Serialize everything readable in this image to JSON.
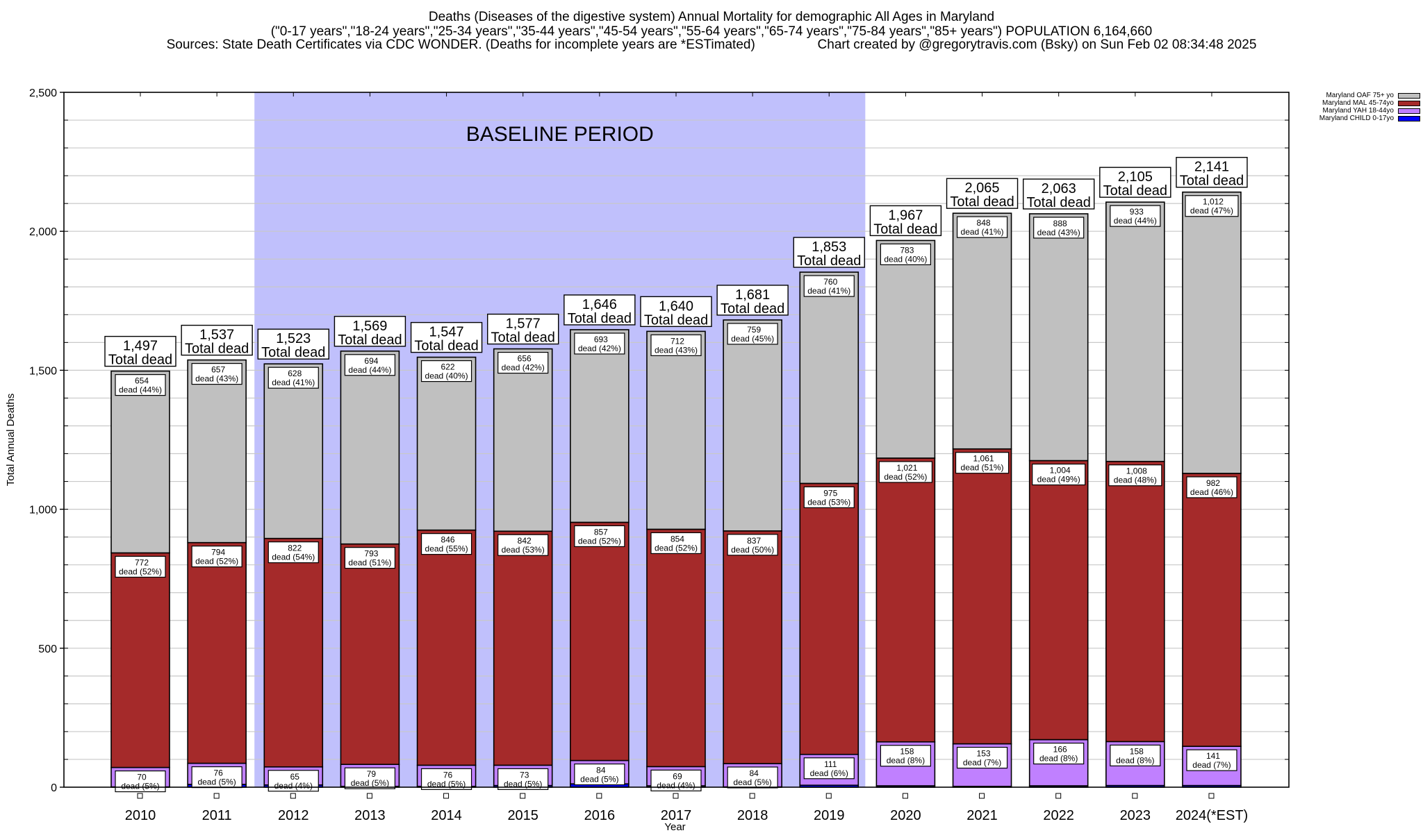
{
  "header": {
    "title_line1": "Deaths (Diseases of the digestive system) Annual Mortality for demographic All Ages in Maryland",
    "title_line2": "(\"0-17 years\",\"18-24 years\",\"25-34 years\",\"35-44 years\",\"45-54 years\",\"55-64 years\",\"65-74 years\",\"75-84 years\",\"85+ years\") POPULATION 6,164,660",
    "title_line3_sources": "Sources: State Death Certificates via CDC WONDER. (Deaths for incomplete years are *ESTimated)",
    "title_line3_credit": "Chart created by @gregorytravis.com (Bsky) on Sun Feb 02 08:34:48 2025"
  },
  "chart_data": {
    "type": "bar",
    "stacked": true,
    "xlabel": "Year",
    "ylabel": "Total Annual Deaths",
    "ylim": [
      0,
      2500
    ],
    "yticks": [
      0,
      500,
      1000,
      1500,
      2000,
      2500
    ],
    "ytick_labels": [
      "0",
      "500",
      "1,000",
      "1,500",
      "2,000",
      "2,500"
    ],
    "minor_grid_step": 100,
    "grid": true,
    "legend_position": "top-right",
    "categories": [
      "2010",
      "2011",
      "2012",
      "2013",
      "2014",
      "2015",
      "2016",
      "2017",
      "2018",
      "2019",
      "2020",
      "2021",
      "2022",
      "2023",
      "2024(*EST)"
    ],
    "annotation": {
      "label": "BASELINE PERIOD",
      "from_category": "2012",
      "to_category": "2019",
      "color": "#c0c0fc"
    },
    "series": [
      {
        "name": "Maryland CHILD 0-17yo",
        "color": "#0000ff",
        "values": [
          1,
          10,
          8,
          3,
          3,
          6,
          12,
          5,
          1,
          7,
          5,
          3,
          5,
          6,
          6
        ],
        "labeled": false
      },
      {
        "name": "Maryland YAH 18-44yo",
        "color": "#c080ff",
        "values": [
          70,
          76,
          65,
          79,
          76,
          73,
          84,
          69,
          84,
          111,
          158,
          153,
          166,
          158,
          141
        ],
        "percents": [
          "5%",
          "5%",
          "4%",
          "5%",
          "5%",
          "5%",
          "5%",
          "4%",
          "5%",
          "6%",
          "8%",
          "7%",
          "8%",
          "8%",
          "7%"
        ],
        "labeled": true
      },
      {
        "name": "Maryland MAL 45-74yo",
        "color": "#a52a2a",
        "values": [
          772,
          794,
          822,
          793,
          846,
          842,
          857,
          854,
          837,
          975,
          1021,
          1061,
          1004,
          1008,
          982
        ],
        "percents": [
          "52%",
          "52%",
          "54%",
          "51%",
          "55%",
          "53%",
          "52%",
          "52%",
          "50%",
          "53%",
          "52%",
          "51%",
          "49%",
          "48%",
          "46%"
        ],
        "labeled": true
      },
      {
        "name": "Maryland OAF 75+ yo",
        "color": "#c0c0c0",
        "values": [
          654,
          657,
          628,
          694,
          622,
          656,
          693,
          712,
          759,
          760,
          783,
          848,
          888,
          933,
          1012
        ],
        "percents": [
          "44%",
          "43%",
          "41%",
          "44%",
          "40%",
          "42%",
          "42%",
          "43%",
          "45%",
          "41%",
          "40%",
          "41%",
          "43%",
          "44%",
          "47%"
        ],
        "labeled": true
      }
    ],
    "totals": [
      1497,
      1537,
      1523,
      1569,
      1547,
      1577,
      1646,
      1640,
      1681,
      1853,
      1967,
      2065,
      2063,
      2105,
      2141
    ],
    "total_label_suffix": "Total dead",
    "segment_label_word": "dead",
    "legend_order": [
      "Maryland OAF 75+ yo",
      "Maryland MAL 45-74yo",
      "Maryland YAH 18-44yo",
      "Maryland CHILD 0-17yo"
    ]
  }
}
